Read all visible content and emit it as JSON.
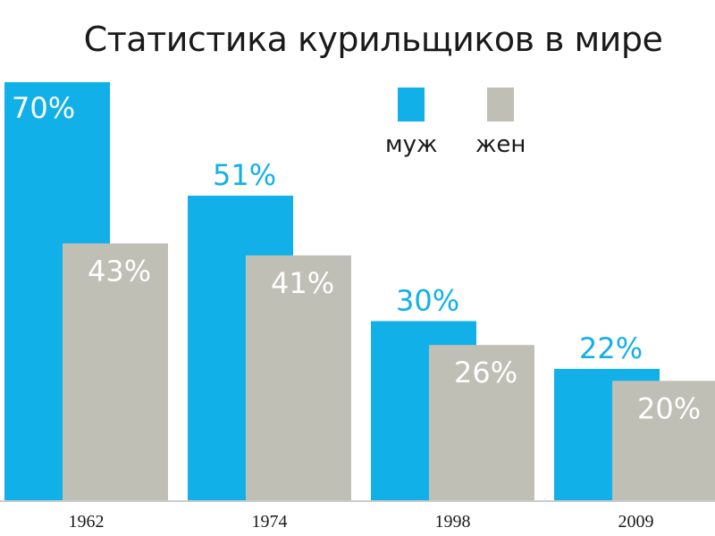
{
  "chart_data": {
    "type": "bar",
    "title": "Статистика курильщиков в мире",
    "categories": [
      "1962",
      "1974",
      "1998",
      "2009"
    ],
    "series": [
      {
        "name": "муж",
        "values": [
          70,
          51,
          30,
          22
        ],
        "labels": [
          "70%",
          "51%",
          "30%",
          "22%"
        ],
        "color": "#12b0e8"
      },
      {
        "name": "жен",
        "values": [
          43,
          41,
          26,
          20
        ],
        "labels": [
          "43%",
          "41%",
          "26%",
          "20%"
        ],
        "color": "#bfbfb5"
      }
    ],
    "xlabel": "",
    "ylabel": "",
    "ylim": [
      0,
      70
    ],
    "grid": false,
    "legend_position": "top-right"
  },
  "colors": {
    "male_label": "#12b0e8",
    "female_label": "#ffffff",
    "male_bar_label": "#ffffff",
    "baseline": "#999999"
  }
}
